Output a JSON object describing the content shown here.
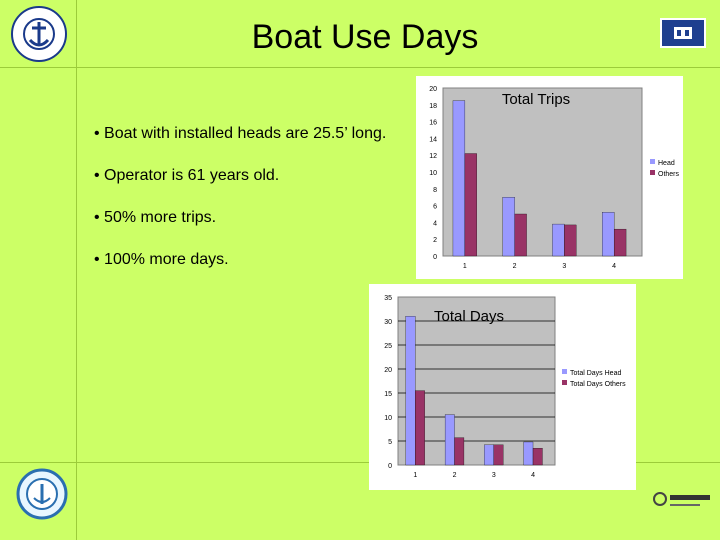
{
  "slide": {
    "title": "Boat Use Days",
    "bullets": [
      "• Boat with installed heads are 25.5’ long.",
      "• Operator is 61 years old.",
      "• 50% more trips.",
      "• 100% more days."
    ],
    "colors": {
      "background": "#ccff66",
      "series1": "#9999ff",
      "series2": "#993366",
      "plot": "#c0c0c0"
    }
  },
  "chart_data": [
    {
      "type": "bar",
      "title": "Total Trips",
      "categories": [
        "1",
        "2",
        "3",
        "4"
      ],
      "series": [
        {
          "name": "Head",
          "values": [
            18.5,
            7,
            3.8,
            5.2
          ]
        },
        {
          "name": "Others",
          "values": [
            12.2,
            5,
            3.7,
            3.2
          ]
        }
      ],
      "ylim": [
        0,
        20
      ],
      "yticks": [
        "0",
        "2",
        "4",
        "6",
        "8",
        "10",
        "12",
        "14",
        "16",
        "18",
        "20"
      ],
      "grid": false,
      "legend": "right"
    },
    {
      "type": "bar",
      "title": "Total Days",
      "categories": [
        "1",
        "2",
        "3",
        "4"
      ],
      "series": [
        {
          "name": "Total Days Head",
          "values": [
            31,
            10.5,
            4.2,
            4.8
          ]
        },
        {
          "name": "Total Days Others",
          "values": [
            15.5,
            5.7,
            4.2,
            3.5
          ]
        }
      ],
      "ylim": [
        0,
        35
      ],
      "yticks": [
        "0",
        "5",
        "10",
        "15",
        "20",
        "25",
        "30",
        "35"
      ],
      "grid": true,
      "legend": "right"
    }
  ]
}
